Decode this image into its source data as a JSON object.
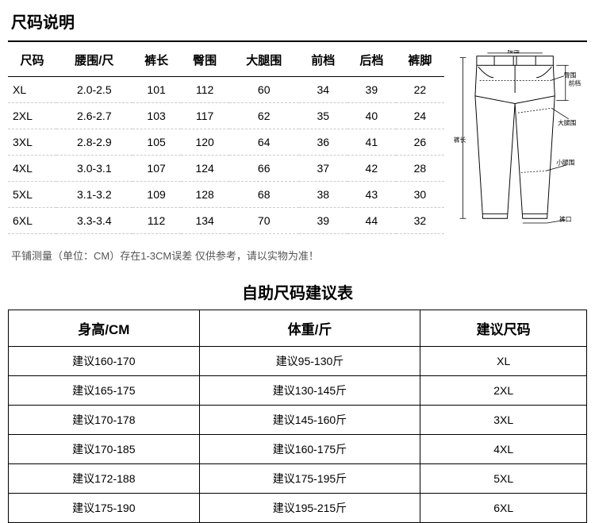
{
  "title": "尺码说明",
  "sizeTable": {
    "headers": [
      "尺码",
      "腰围/尺",
      "裤长",
      "臀围",
      "大腿围",
      "前档",
      "后档",
      "裤脚"
    ],
    "rows": [
      [
        "XL",
        "2.0-2.5",
        "101",
        "112",
        "60",
        "34",
        "39",
        "22"
      ],
      [
        "2XL",
        "2.6-2.7",
        "103",
        "117",
        "62",
        "35",
        "40",
        "24"
      ],
      [
        "3XL",
        "2.8-2.9",
        "105",
        "120",
        "64",
        "36",
        "41",
        "26"
      ],
      [
        "4XL",
        "3.0-3.1",
        "107",
        "124",
        "66",
        "37",
        "42",
        "28"
      ],
      [
        "5XL",
        "3.1-3.2",
        "109",
        "128",
        "68",
        "38",
        "43",
        "30"
      ],
      [
        "6XL",
        "3.3-3.4",
        "112",
        "134",
        "70",
        "39",
        "44",
        "32"
      ]
    ]
  },
  "note": "平铺测量（单位：CM）存在1-3CM误差 仅供参考，请以实物为准！",
  "diagram": {
    "labels": {
      "waist": "腰围",
      "hip": "臀围",
      "front": "前档",
      "thigh": "大腿围",
      "length": "裤长",
      "calf": "小腿围",
      "hem": "裤口"
    }
  },
  "recTitle": "自助尺码建议表",
  "recTable": {
    "headers": [
      "身高/CM",
      "体重/斤",
      "建议尺码"
    ],
    "rows": [
      [
        "建议160-170",
        "建议95-130斤",
        "XL"
      ],
      [
        "建议165-175",
        "建议130-145斤",
        "2XL"
      ],
      [
        "建议170-178",
        "建议145-160斤",
        "3XL"
      ],
      [
        "建议170-185",
        "建议160-175斤",
        "4XL"
      ],
      [
        "建议172-188",
        "建议175-195斤",
        "5XL"
      ],
      [
        "建议175-190",
        "建议195-215斤",
        "6XL"
      ]
    ]
  },
  "colors": {
    "line": "#000000",
    "dash": "#cccccc",
    "text": "#000000",
    "note": "#555555",
    "bg": "#ffffff"
  }
}
